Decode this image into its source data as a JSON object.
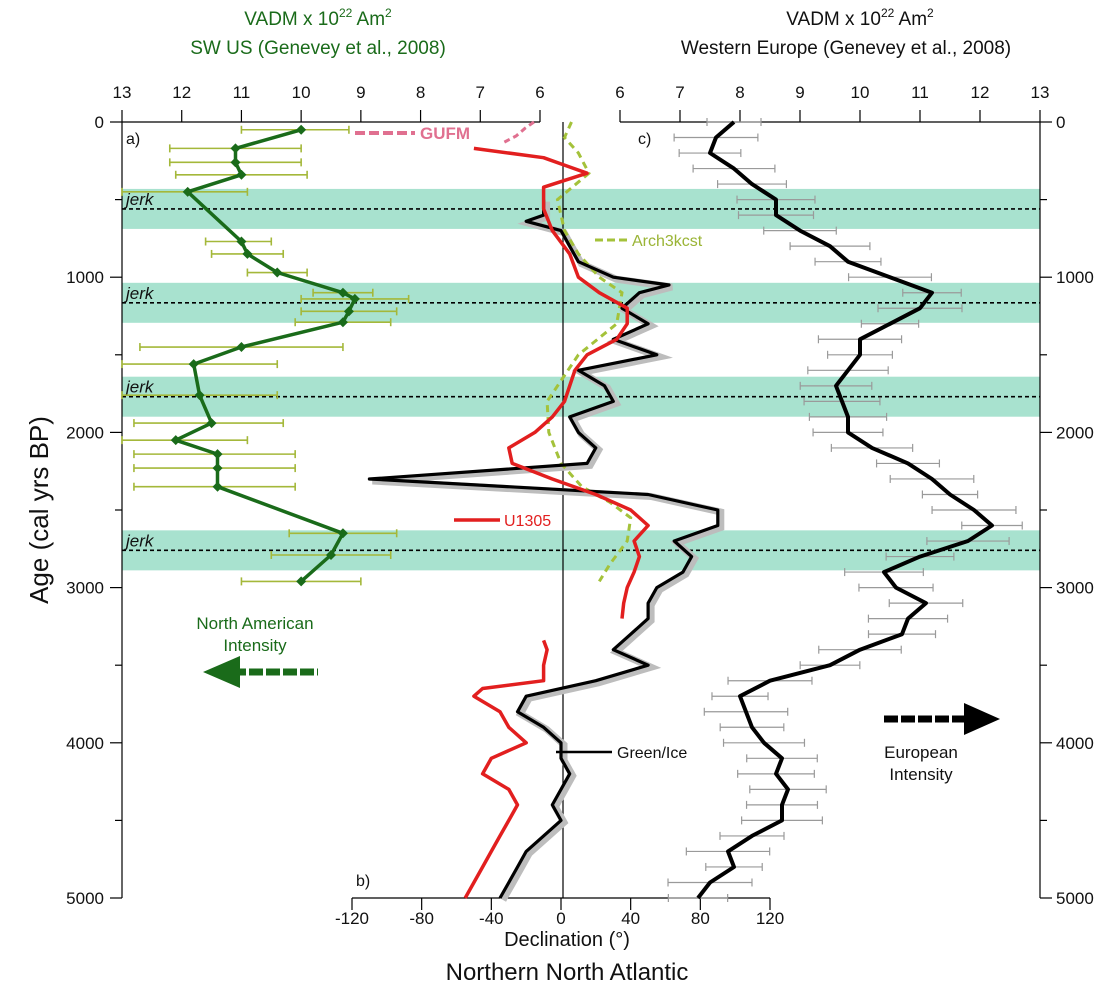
{
  "chart_data": {
    "type": "line",
    "y_axis": {
      "label": "Age (cal yrs BP)",
      "ticks": [
        "0",
        "1000",
        "2000",
        "3000",
        "4000",
        "5000"
      ],
      "range": [
        0,
        5000
      ],
      "reversed": true
    },
    "top_left_axis": {
      "title_line1": "VADM  x 10",
      "title_sup": "22",
      "title_unit": " Am",
      "title_unit_sup": "2",
      "title_line2": "SW US (Genevey et al., 2008)",
      "ticks": [
        "13",
        "12",
        "11",
        "10",
        "9",
        "8",
        "7",
        "6"
      ],
      "range": [
        13,
        6
      ]
    },
    "top_right_axis": {
      "title_line1": "VADM  x 10",
      "title_sup": "22",
      "title_unit": " Am",
      "title_unit_sup": "2",
      "title_line2": "Western Europe (Genevey et al., 2008)",
      "ticks": [
        "6",
        "7",
        "8",
        "9",
        "10",
        "11",
        "12",
        "13"
      ],
      "range": [
        6,
        13
      ]
    },
    "bottom_axis": {
      "label": "Declination (°)",
      "ticks": [
        "-120",
        "-80",
        "-40",
        "0",
        "40",
        "80",
        "120"
      ],
      "range": [
        -120,
        120
      ]
    },
    "footer": "Northern North Atlantic",
    "panel_labels": [
      "a)",
      "b)",
      "c)"
    ],
    "jerks": {
      "label": "jerk",
      "ages": [
        560,
        1165,
        1770,
        2760
      ],
      "band_color": "#a8e2cf"
    },
    "annotations": {
      "gufm": "GUFM",
      "arch3kcst": "Arch3kcst",
      "u1305": "U1305",
      "green_ice": "Green/Ice",
      "na_intensity_line1": "North American",
      "na_intensity_line2": "Intensity",
      "eu_intensity_line1": "European",
      "eu_intensity_line2": "Intensity"
    },
    "colors": {
      "sw_us": "#1a6b1a",
      "sw_us_error": "#a4b83a",
      "u1305": "#e21f1f",
      "green_ice": "#000000",
      "arch3kcst": "#a4c23a",
      "gufm": "#e07090",
      "europe": "#000000",
      "europe_error": "#9a9a9a"
    },
    "series": [
      {
        "name": "SW US (Genevey et al., 2008)",
        "axis": "vadm_left",
        "points": [
          {
            "age": 50,
            "vadm": 10.0,
            "err_lo": 11.0,
            "err_hi": 9.2
          },
          {
            "age": 170,
            "vadm": 11.1,
            "err_lo": 12.2,
            "err_hi": 10.0
          },
          {
            "age": 260,
            "vadm": 11.1,
            "err_lo": 12.2,
            "err_hi": 10.0
          },
          {
            "age": 340,
            "vadm": 11.0,
            "err_lo": 12.1,
            "err_hi": 9.9
          },
          {
            "age": 450,
            "vadm": 11.9,
            "err_lo": 13.0,
            "err_hi": 10.9
          },
          {
            "age": 770,
            "vadm": 11.0,
            "err_lo": 11.6,
            "err_hi": 10.5
          },
          {
            "age": 850,
            "vadm": 10.9,
            "err_lo": 11.5,
            "err_hi": 10.3
          },
          {
            "age": 970,
            "vadm": 10.4,
            "err_lo": 10.9,
            "err_hi": 9.9
          },
          {
            "age": 1100,
            "vadm": 9.3,
            "err_lo": 9.8,
            "err_hi": 8.8
          },
          {
            "age": 1140,
            "vadm": 9.1,
            "err_lo": 10.0,
            "err_hi": 8.2
          },
          {
            "age": 1220,
            "vadm": 9.2,
            "err_lo": 10.0,
            "err_hi": 8.4
          },
          {
            "age": 1290,
            "vadm": 9.3,
            "err_lo": 10.1,
            "err_hi": 8.5
          },
          {
            "age": 1450,
            "vadm": 11.0,
            "err_lo": 12.7,
            "err_hi": 9.3
          },
          {
            "age": 1560,
            "vadm": 11.8,
            "err_lo": 13.0,
            "err_hi": 10.4
          },
          {
            "age": 1760,
            "vadm": 11.7,
            "err_lo": 13.0,
            "err_hi": 10.4
          },
          {
            "age": 1940,
            "vadm": 11.5,
            "err_lo": 12.8,
            "err_hi": 10.3
          },
          {
            "age": 2050,
            "vadm": 12.1,
            "err_lo": 13.0,
            "err_hi": 10.9
          },
          {
            "age": 2140,
            "vadm": 11.4,
            "err_lo": 12.8,
            "err_hi": 10.1
          },
          {
            "age": 2230,
            "vadm": 11.4,
            "err_lo": 12.8,
            "err_hi": 10.1
          },
          {
            "age": 2350,
            "vadm": 11.4,
            "err_lo": 12.8,
            "err_hi": 10.1
          },
          {
            "age": 2650,
            "vadm": 9.3,
            "err_lo": 10.2,
            "err_hi": 8.4
          },
          {
            "age": 2790,
            "vadm": 9.5,
            "err_lo": 10.5,
            "err_hi": 8.5
          },
          {
            "age": 2960,
            "vadm": 10.0,
            "err_lo": 11.0,
            "err_hi": 9.0
          }
        ]
      },
      {
        "name": "GUFM",
        "axis": "vadm_left_model",
        "points": [
          [
            0,
            6.1
          ],
          [
            40,
            6.25
          ],
          [
            90,
            6.4
          ],
          [
            130,
            6.6
          ]
        ]
      },
      {
        "name": "Arch3kcst",
        "axis": "declination",
        "points": [
          [
            0,
            6
          ],
          [
            100,
            2
          ],
          [
            200,
            10
          ],
          [
            330,
            16
          ],
          [
            500,
            -2
          ],
          [
            700,
            2
          ],
          [
            850,
            10
          ],
          [
            1000,
            22
          ],
          [
            1100,
            35
          ],
          [
            1300,
            32
          ],
          [
            1500,
            10
          ],
          [
            1800,
            -8
          ],
          [
            2000,
            -7
          ],
          [
            2200,
            0
          ],
          [
            2350,
            12
          ],
          [
            2450,
            28
          ],
          [
            2550,
            40
          ],
          [
            2700,
            38
          ],
          [
            2850,
            28
          ],
          [
            2960,
            22
          ]
        ]
      },
      {
        "name": "U1305",
        "axis": "declination",
        "points": [
          [
            170,
            -50
          ],
          [
            230,
            -10
          ],
          [
            290,
            5
          ],
          [
            330,
            15
          ],
          [
            420,
            -10
          ],
          [
            560,
            -10
          ],
          [
            700,
            -5
          ],
          [
            850,
            5
          ],
          [
            1000,
            10
          ],
          [
            1100,
            22
          ],
          [
            1200,
            38
          ],
          [
            1300,
            38
          ],
          [
            1400,
            32
          ],
          [
            1500,
            15
          ],
          [
            1600,
            8
          ],
          [
            1700,
            5
          ],
          [
            1800,
            2
          ],
          [
            1900,
            -5
          ],
          [
            2000,
            -15
          ],
          [
            2100,
            -30
          ],
          [
            2200,
            -28
          ],
          [
            2300,
            -5
          ],
          [
            2400,
            20
          ],
          [
            2500,
            40
          ],
          [
            2600,
            50
          ],
          [
            2700,
            42
          ],
          [
            2800,
            45
          ],
          [
            2900,
            42
          ],
          [
            3000,
            38
          ],
          [
            3100,
            36
          ],
          [
            3200,
            35
          ],
          [
            3340,
            -10
          ],
          [
            3400,
            -8
          ],
          [
            3500,
            -10
          ],
          [
            3600,
            -10
          ],
          [
            3650,
            -45
          ],
          [
            3700,
            -50
          ],
          [
            3800,
            -35
          ],
          [
            3900,
            -30
          ],
          [
            4000,
            -20
          ],
          [
            4100,
            -40
          ],
          [
            4200,
            -45
          ],
          [
            4300,
            -30
          ],
          [
            4400,
            -25
          ],
          [
            4500,
            -30
          ],
          [
            4600,
            -35
          ],
          [
            4700,
            -40
          ],
          [
            4800,
            -45
          ],
          [
            4900,
            -50
          ],
          [
            5000,
            -55
          ]
        ]
      },
      {
        "name": "Green/Ice",
        "axis": "declination",
        "points": [
          [
            500,
            -10
          ],
          [
            600,
            -10
          ],
          [
            640,
            -20
          ],
          [
            700,
            0
          ],
          [
            800,
            5
          ],
          [
            900,
            10
          ],
          [
            1000,
            30
          ],
          [
            1050,
            62
          ],
          [
            1100,
            45
          ],
          [
            1200,
            35
          ],
          [
            1300,
            50
          ],
          [
            1400,
            30
          ],
          [
            1500,
            55
          ],
          [
            1600,
            10
          ],
          [
            1700,
            25
          ],
          [
            1800,
            30
          ],
          [
            1900,
            5
          ],
          [
            2000,
            10
          ],
          [
            2100,
            20
          ],
          [
            2200,
            15
          ],
          [
            2300,
            -110
          ],
          [
            2400,
            50
          ],
          [
            2500,
            90
          ],
          [
            2600,
            90
          ],
          [
            2700,
            65
          ],
          [
            2800,
            75
          ],
          [
            2900,
            70
          ],
          [
            3000,
            55
          ],
          [
            3100,
            50
          ],
          [
            3200,
            50
          ],
          [
            3300,
            40
          ],
          [
            3400,
            30
          ],
          [
            3500,
            50
          ],
          [
            3600,
            20
          ],
          [
            3700,
            -20
          ],
          [
            3800,
            -25
          ],
          [
            3900,
            -10
          ],
          [
            4000,
            0
          ],
          [
            4100,
            0
          ],
          [
            4200,
            5
          ],
          [
            4300,
            0
          ],
          [
            4400,
            -5
          ],
          [
            4500,
            0
          ],
          [
            4600,
            -10
          ],
          [
            4700,
            -20
          ],
          [
            4800,
            -25
          ],
          [
            4900,
            -30
          ],
          [
            5000,
            -35
          ]
        ]
      },
      {
        "name": "Western Europe (Genevey et al., 2008)",
        "axis": "vadm_right",
        "points": [
          [
            0,
            7.9
          ],
          [
            100,
            7.6
          ],
          [
            200,
            7.5
          ],
          [
            300,
            7.9
          ],
          [
            400,
            8.2
          ],
          [
            500,
            8.6
          ],
          [
            600,
            8.6
          ],
          [
            700,
            9.0
          ],
          [
            800,
            9.5
          ],
          [
            900,
            9.8
          ],
          [
            1000,
            10.5
          ],
          [
            1100,
            11.2
          ],
          [
            1200,
            11.0
          ],
          [
            1300,
            10.5
          ],
          [
            1400,
            10.0
          ],
          [
            1500,
            10.0
          ],
          [
            1600,
            9.8
          ],
          [
            1700,
            9.6
          ],
          [
            1800,
            9.7
          ],
          [
            1900,
            9.8
          ],
          [
            2000,
            9.8
          ],
          [
            2100,
            10.2
          ],
          [
            2200,
            10.8
          ],
          [
            2300,
            11.2
          ],
          [
            2400,
            11.5
          ],
          [
            2500,
            11.9
          ],
          [
            2600,
            12.2
          ],
          [
            2700,
            11.8
          ],
          [
            2800,
            11.0
          ],
          [
            2900,
            10.4
          ],
          [
            3000,
            10.6
          ],
          [
            3100,
            11.1
          ],
          [
            3200,
            10.8
          ],
          [
            3300,
            10.7
          ],
          [
            3400,
            10.0
          ],
          [
            3500,
            9.5
          ],
          [
            3600,
            8.5
          ],
          [
            3700,
            8.0
          ],
          [
            3800,
            8.1
          ],
          [
            3900,
            8.2
          ],
          [
            4000,
            8.4
          ],
          [
            4100,
            8.7
          ],
          [
            4200,
            8.6
          ],
          [
            4300,
            8.8
          ],
          [
            4400,
            8.7
          ],
          [
            4500,
            8.7
          ],
          [
            4600,
            8.2
          ],
          [
            4700,
            7.8
          ],
          [
            4800,
            7.9
          ],
          [
            4900,
            7.5
          ],
          [
            5000,
            7.3
          ]
        ]
      }
    ]
  }
}
